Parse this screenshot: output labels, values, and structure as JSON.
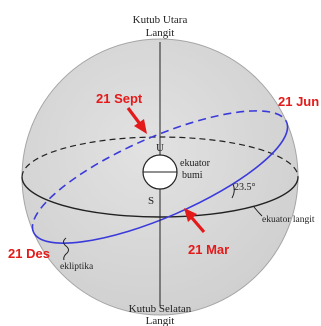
{
  "labels": {
    "north_pole_line1": "Kutub Utara",
    "north_pole_line2": "Langit",
    "south_pole_line1": "Kutub Selatan",
    "south_pole_line2": "Langit",
    "date_sept": "21 Sept",
    "date_jun": "21 Jun",
    "date_des": "21 Des",
    "date_mar": "21 Mar",
    "pole_u": "U",
    "pole_s": "S",
    "earth_equator_line1": "ekuator",
    "earth_equator_line2": "bumi",
    "tilt_angle": "23.5°",
    "celestial_equator": "ekuator langit",
    "ecliptic": "ekliptika"
  },
  "colors": {
    "sphere_fill": "#d6d6d6",
    "sphere_stroke": "#9a9a9a",
    "ecliptic": "#3a3adb",
    "date_label": "#e41a1a",
    "arrow": "#e41a1a",
    "line": "#222222"
  }
}
